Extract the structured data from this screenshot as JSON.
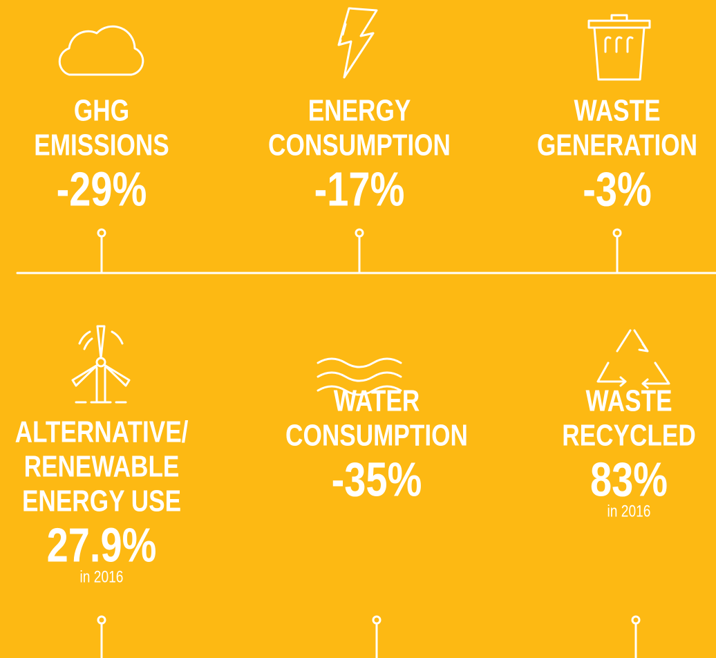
{
  "rows": [
    {
      "items": [
        {
          "label": [
            "GHG",
            "EMISSIONS"
          ],
          "value": "-29%"
        },
        {
          "label": [
            "ENERGY",
            "CONSUMPTION"
          ],
          "value": "-17%"
        },
        {
          "label": [
            "WASTE",
            "GENERATION"
          ],
          "value": "-3%"
        }
      ]
    },
    {
      "items": [
        {
          "label": [
            "ALTERNATIVE/",
            "RENEWABLE",
            "ENERGY USE"
          ],
          "value": "27.9%",
          "note": "in 2016"
        },
        {
          "label": [
            "WATER",
            "CONSUMPTION"
          ],
          "value": "-35%"
        },
        {
          "label": [
            "WASTE",
            "RECYCLED"
          ],
          "value": "83%",
          "note": "in 2016"
        }
      ]
    }
  ]
}
